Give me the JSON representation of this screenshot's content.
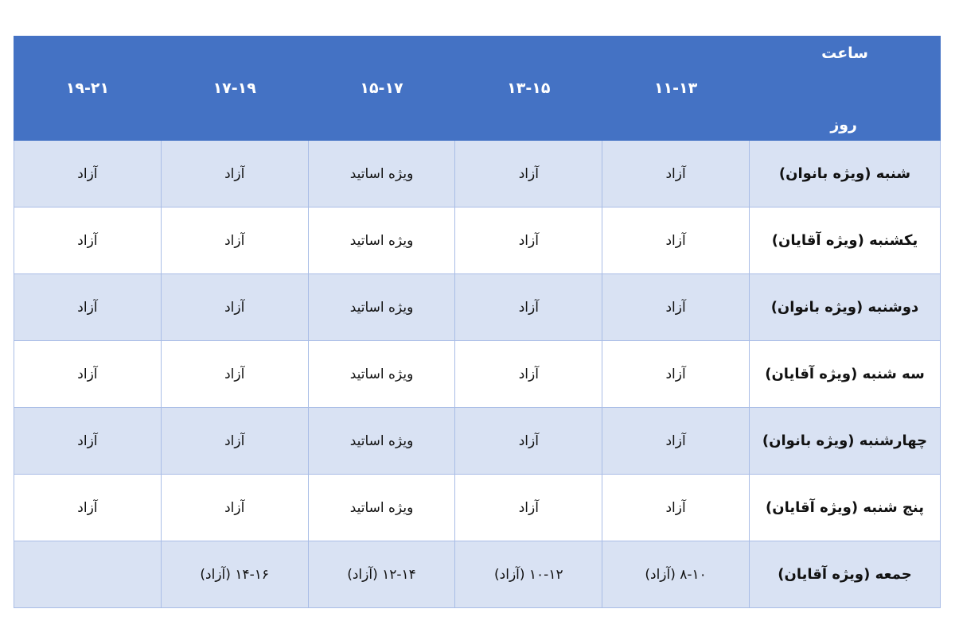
{
  "header": {
    "hour_label": "ساعت",
    "day_label": "روز",
    "slots": [
      "۱۱-۱۳",
      "۱۳-۱۵",
      "۱۵-۱۷",
      "۱۷-۱۹",
      "۱۹-۲۱"
    ]
  },
  "rows": [
    {
      "day": "شنبه (ویژه بانوان)",
      "cells": [
        "آزاد",
        "آزاد",
        "ویژه اساتید",
        "آزاد",
        "آزاد"
      ]
    },
    {
      "day": "یکشنبه (ویژه آقایان)",
      "cells": [
        "آزاد",
        "آزاد",
        "ویژه اساتید",
        "آزاد",
        "آزاد"
      ]
    },
    {
      "day": "دوشنبه (ویژه بانوان)",
      "cells": [
        "آزاد",
        "آزاد",
        "ویژه اساتید",
        "آزاد",
        "آزاد"
      ]
    },
    {
      "day": "سه شنبه (ویژه آقایان)",
      "cells": [
        "آزاد",
        "آزاد",
        "ویژه اساتید",
        "آزاد",
        "آزاد"
      ]
    },
    {
      "day": "چهارشنبه (ویژه بانوان)",
      "cells": [
        "آزاد",
        "آزاد",
        "ویژه اساتید",
        "آزاد",
        "آزاد"
      ]
    },
    {
      "day": "پنج شنبه (ویژه آقایان)",
      "cells": [
        "آزاد",
        "آزاد",
        "ویژه اساتید",
        "آزاد",
        "آزاد"
      ]
    },
    {
      "day": "جمعه (ویژه آقایان)",
      "cells": [
        "۸-۱۰ (آزاد)",
        "۱۰-۱۲ (آزاد)",
        "۱۲-۱۴ (آزاد)",
        "۱۴-۱۶ (آزاد)",
        ""
      ]
    }
  ],
  "colors": {
    "header": "#4472C4",
    "band": "#D9E2F3",
    "border": "#a9bde6"
  }
}
